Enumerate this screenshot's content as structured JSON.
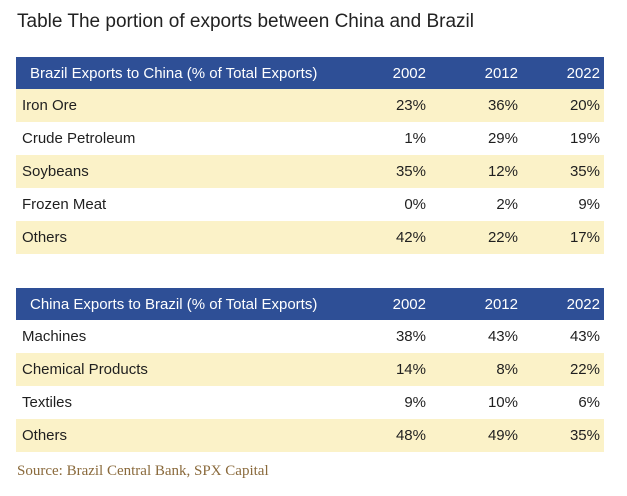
{
  "title": "Table The portion of exports between China and Brazil",
  "colors": {
    "header_bg": "#2e4f96",
    "shade_row": "#fbf2c8",
    "source_text": "#8a6a3c"
  },
  "table1": {
    "header": [
      "Brazil Exports to China (% of Total Exports)",
      "2002",
      "2012",
      "2022"
    ],
    "rows": [
      [
        "Iron Ore",
        "23%",
        "36%",
        "20%"
      ],
      [
        "Crude Petroleum",
        "1%",
        "29%",
        "19%"
      ],
      [
        "Soybeans",
        "35%",
        "12%",
        "35%"
      ],
      [
        "Frozen Meat",
        "0%",
        "2%",
        "9%"
      ],
      [
        "Others",
        "42%",
        "22%",
        "17%"
      ]
    ]
  },
  "table2": {
    "header": [
      "China Exports to Brazil (% of Total Exports)",
      "2002",
      "2012",
      "2022"
    ],
    "rows": [
      [
        "Machines",
        "38%",
        "43%",
        "43%"
      ],
      [
        "Chemical Products",
        "14%",
        "8%",
        "22%"
      ],
      [
        "Textiles",
        "9%",
        "10%",
        "6%"
      ],
      [
        "Others",
        "48%",
        "49%",
        "35%"
      ]
    ]
  },
  "source": "Source: Brazil Central Bank, SPX Capital"
}
